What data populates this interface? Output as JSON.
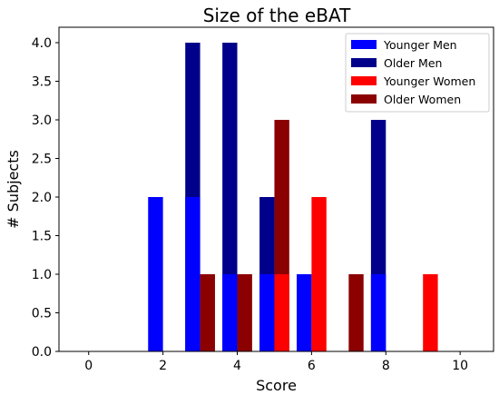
{
  "chart_data": {
    "type": "bar",
    "title": "Size of the eBAT",
    "xlabel": "Score",
    "ylabel": "# Subjects",
    "xlim": [
      -0.8,
      10.9
    ],
    "ylim": [
      0,
      4.2
    ],
    "xticks": [
      0,
      2,
      4,
      6,
      8,
      10
    ],
    "yticks": [
      0.0,
      0.5,
      1.0,
      1.5,
      2.0,
      2.5,
      3.0,
      3.5,
      4.0
    ],
    "ytick_labels": [
      "0.0",
      "0.5",
      "1.0",
      "1.5",
      "2.0",
      "2.5",
      "3.0",
      "3.5",
      "4.0"
    ],
    "legend_position": "top-right",
    "grid": false,
    "bar_width": 0.4,
    "series": [
      {
        "name": "Younger Men",
        "color": "#0000ff",
        "points": [
          {
            "x": 1.8,
            "y": 2
          },
          {
            "x": 2.8,
            "y": 2
          },
          {
            "x": 3.8,
            "y": 1
          },
          {
            "x": 4.8,
            "y": 1
          },
          {
            "x": 5.8,
            "y": 1
          },
          {
            "x": 7.8,
            "y": 1
          }
        ]
      },
      {
        "name": "Older Men",
        "color": "#00008b",
        "points": [
          {
            "x": 2.8,
            "y": 4
          },
          {
            "x": 3.8,
            "y": 4
          },
          {
            "x": 4.8,
            "y": 2
          },
          {
            "x": 7.8,
            "y": 3
          }
        ]
      },
      {
        "name": "Younger Women",
        "color": "#ff0000",
        "points": [
          {
            "x": 5.2,
            "y": 1
          },
          {
            "x": 6.2,
            "y": 2
          },
          {
            "x": 9.2,
            "y": 1
          }
        ]
      },
      {
        "name": "Older Women",
        "color": "#8b0000",
        "points": [
          {
            "x": 3.2,
            "y": 1
          },
          {
            "x": 4.2,
            "y": 1
          },
          {
            "x": 5.2,
            "y": 3
          },
          {
            "x": 7.2,
            "y": 1
          }
        ]
      }
    ],
    "draw_order": [
      1,
      0,
      3,
      2
    ]
  }
}
